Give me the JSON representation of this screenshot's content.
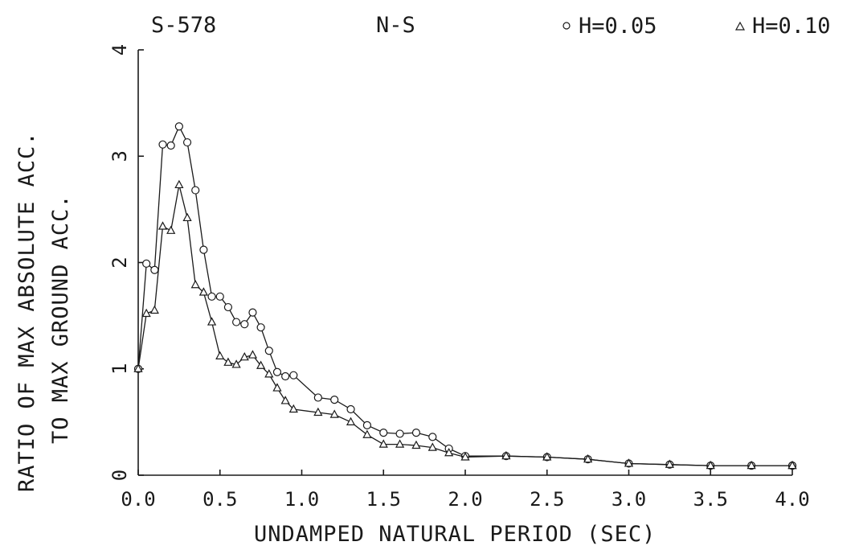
{
  "header": {
    "station": "S-578",
    "component": "N-S",
    "legend": [
      {
        "symbol": "o",
        "label": "H=0.05"
      },
      {
        "symbol": "▵",
        "label": "H=0.10"
      }
    ]
  },
  "chart_data": {
    "type": "line",
    "title": "",
    "xlabel": "UNDAMPED NATURAL PERIOD (SEC)",
    "ylabel_line1": "RATIO OF MAX ABSOLUTE ACC.",
    "ylabel_line2": "TO MAX GROUND ACC.",
    "xlim": [
      0,
      4.0
    ],
    "ylim": [
      0,
      4
    ],
    "xticks": [
      "0.0",
      "0.5",
      "1.0",
      "1.5",
      "2.0",
      "2.5",
      "3.0",
      "3.5",
      "4.0"
    ],
    "yticks": [
      "0",
      "1",
      "2",
      "3",
      "4"
    ],
    "legend_position": "top-right",
    "series": [
      {
        "name": "H=0.05",
        "marker": "circle",
        "x": [
          0.0,
          0.05,
          0.1,
          0.15,
          0.2,
          0.25,
          0.3,
          0.35,
          0.4,
          0.45,
          0.5,
          0.55,
          0.6,
          0.65,
          0.7,
          0.75,
          0.8,
          0.85,
          0.9,
          0.95,
          1.1,
          1.2,
          1.3,
          1.4,
          1.5,
          1.6,
          1.7,
          1.8,
          1.9,
          2.0,
          2.25,
          2.5,
          2.75,
          3.0,
          3.25,
          3.5,
          3.75,
          4.0,
          4.0
        ],
        "y": [
          1.0,
          1.99,
          1.93,
          3.11,
          3.1,
          3.28,
          3.13,
          2.68,
          2.12,
          1.68,
          1.68,
          1.58,
          1.44,
          1.42,
          1.53,
          1.39,
          1.17,
          0.97,
          0.93,
          0.94,
          0.73,
          0.71,
          0.62,
          0.47,
          0.4,
          0.39,
          0.4,
          0.36,
          0.25,
          0.18,
          0.18,
          0.17,
          0.15,
          0.11,
          0.1,
          0.09,
          0.09,
          0.09,
          0.09
        ]
      },
      {
        "name": "H=0.10",
        "marker": "triangle",
        "x": [
          0.0,
          0.05,
          0.1,
          0.15,
          0.2,
          0.25,
          0.3,
          0.35,
          0.4,
          0.45,
          0.5,
          0.55,
          0.6,
          0.65,
          0.7,
          0.75,
          0.8,
          0.85,
          0.9,
          0.95,
          1.1,
          1.2,
          1.3,
          1.4,
          1.5,
          1.6,
          1.7,
          1.8,
          1.9,
          2.0,
          2.25,
          2.5,
          2.75,
          3.0,
          3.25,
          3.5,
          3.75,
          4.0,
          4.0
        ],
        "y": [
          1.0,
          1.52,
          1.55,
          2.34,
          2.3,
          2.73,
          2.42,
          1.79,
          1.72,
          1.44,
          1.12,
          1.06,
          1.04,
          1.11,
          1.13,
          1.03,
          0.95,
          0.82,
          0.7,
          0.62,
          0.59,
          0.57,
          0.5,
          0.38,
          0.29,
          0.29,
          0.28,
          0.26,
          0.21,
          0.17,
          0.18,
          0.17,
          0.15,
          0.11,
          0.1,
          0.09,
          0.09,
          0.09,
          0.09
        ]
      }
    ]
  }
}
